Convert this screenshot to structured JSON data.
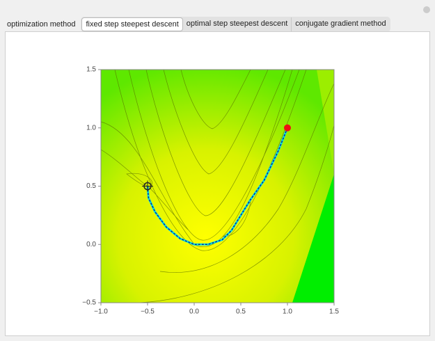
{
  "controls": {
    "label": "optimization method",
    "options": [
      "fixed step steepest descent",
      "optimal step steepest descent",
      "conjugate gradient method"
    ],
    "selected": 0
  },
  "chart_data": {
    "type": "contour",
    "xlim": [
      -1.0,
      1.5
    ],
    "ylim": [
      -0.5,
      1.5
    ],
    "xticks": [
      {
        "value": -1.0,
        "label": "−1.0"
      },
      {
        "value": -0.5,
        "label": "−0.5"
      },
      {
        "value": 0.0,
        "label": "0.0"
      },
      {
        "value": 0.5,
        "label": "0.5"
      },
      {
        "value": 1.0,
        "label": "1.0"
      },
      {
        "value": 1.5,
        "label": "1.5"
      }
    ],
    "yticks": [
      {
        "value": -0.5,
        "label": "−0.5"
      },
      {
        "value": 0.0,
        "label": "0.0"
      },
      {
        "value": 0.5,
        "label": "0.5"
      },
      {
        "value": 1.0,
        "label": "1.0"
      },
      {
        "value": 1.5,
        "label": "1.5"
      }
    ],
    "path": {
      "color": "#00e5e5",
      "x": [
        1.0,
        0.9,
        0.75,
        0.6,
        0.5,
        0.4,
        0.3,
        0.15,
        0.0,
        -0.15,
        -0.3,
        -0.42,
        -0.49,
        -0.5
      ],
      "y": [
        1.0,
        0.8,
        0.55,
        0.38,
        0.25,
        0.12,
        0.04,
        0.0,
        0.0,
        0.05,
        0.15,
        0.28,
        0.4,
        0.5
      ]
    },
    "start": {
      "x": 1.0,
      "y": 1.0,
      "color": "#ee1111"
    },
    "minimum": {
      "x": -0.5,
      "y": 0.5
    }
  }
}
